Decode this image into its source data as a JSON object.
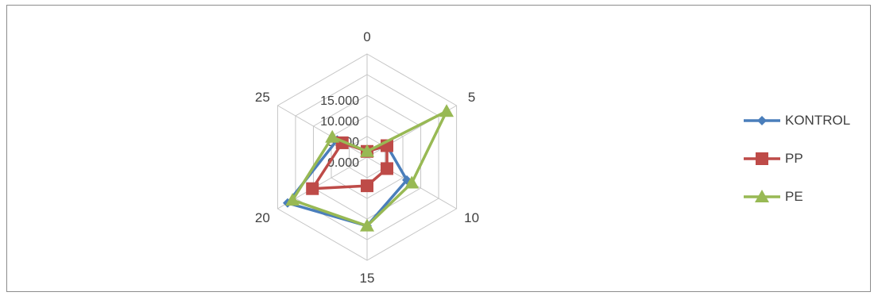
{
  "chart_data": {
    "type": "radar",
    "categories": [
      "0",
      "5",
      "10",
      "15",
      "20",
      "25"
    ],
    "tick_labels": [
      "0.000",
      "5.000",
      "10.000",
      "15.000"
    ],
    "rmax": 18,
    "series": [
      {
        "name": "KONTROL",
        "color": "#4a7ebb",
        "marker": "diamond",
        "values": [
          1,
          4,
          8,
          12,
          16,
          6
        ]
      },
      {
        "name": "PP",
        "color": "#be4b48",
        "marker": "square",
        "values": [
          1,
          4,
          4,
          5,
          11,
          5
        ]
      },
      {
        "name": "PE",
        "color": "#98b954",
        "marker": "triangle",
        "values": [
          1,
          16,
          9,
          12,
          15,
          7
        ]
      }
    ]
  }
}
